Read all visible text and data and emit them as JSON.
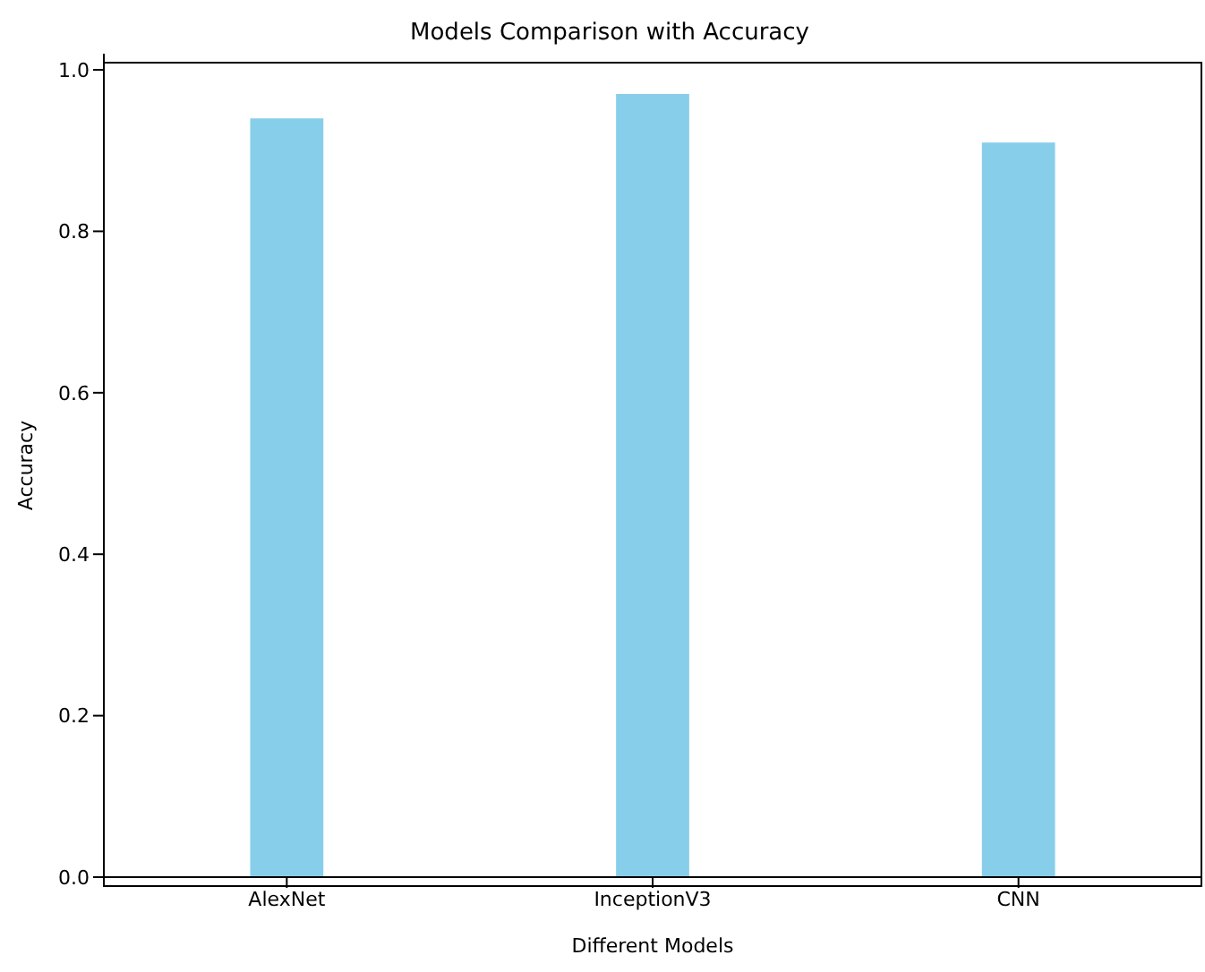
{
  "chart_data": {
    "type": "bar",
    "title": "Models Comparison with Accuracy",
    "xlabel": "Different Models",
    "ylabel": "Accuracy",
    "categories": [
      "AlexNet",
      "InceptionV3",
      "CNN"
    ],
    "values": [
      0.94,
      0.97,
      0.91
    ],
    "color": "#87ceeb",
    "ylim": [
      0,
      1.02
    ],
    "yticks": [
      {
        "value": 0,
        "label": "0.0"
      },
      {
        "value": 0.2,
        "label": "0.2"
      },
      {
        "value": 0.4,
        "label": "0.4"
      },
      {
        "value": 0.6,
        "label": "0.6"
      },
      {
        "value": 0.8,
        "label": "0.8"
      },
      {
        "value": 1,
        "label": "1.0"
      }
    ],
    "grid": false,
    "legend": false
  }
}
